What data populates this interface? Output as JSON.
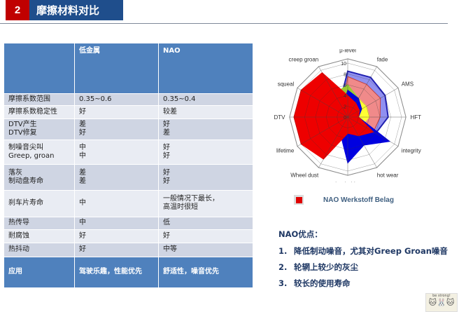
{
  "header": {
    "number": "2",
    "title": "摩擦材料对比"
  },
  "table": {
    "columns": [
      "",
      "低金属",
      "NAO"
    ],
    "rows": [
      [
        "摩擦系数范围",
        "0.35~0.6",
        "0.35~0.4"
      ],
      [
        "摩擦系数稳定性",
        "好",
        "较差"
      ],
      [
        "DTV产生\nDTV修复",
        "差\n好",
        "好\n差"
      ],
      [
        "制噪音尖叫\nGreep, groan",
        "中\n中",
        "好\n好"
      ],
      [
        "落灰\n制动盘寿命",
        "差\n差",
        "好\n好"
      ],
      [
        "刹车片寿命",
        "中",
        "一般情况下最长，\n高温时很短"
      ],
      [
        "热传导",
        "中",
        "低"
      ],
      [
        "耐腐蚀",
        "好",
        "好"
      ],
      [
        "热抖动",
        "好",
        "中等"
      ]
    ],
    "footer": [
      "应用",
      "驾驶乐趣，性能优先",
      "舒适性，噪音优先"
    ]
  },
  "chart_data": {
    "type": "radar",
    "axes": [
      "μ-level",
      "fade",
      "AMS",
      "HFT",
      "integrity",
      "hot wear",
      "hot judder",
      "Wheel dust",
      "lifetime",
      "DTV",
      "squeal",
      "creep groan"
    ],
    "rlim": [
      0,
      10
    ],
    "ticks": [
      "0",
      "2",
      "4",
      "6",
      "8",
      "10"
    ],
    "series": [
      {
        "color": "#9090f0",
        "stroke": "#2020b0",
        "values": [
          8.5,
          8.5,
          8,
          7.5,
          6,
          3,
          2,
          2,
          2,
          2,
          2,
          3
        ]
      },
      {
        "color": "#f08a8a",
        "stroke": "#c04040",
        "values": [
          7.5,
          7,
          7,
          6,
          5.5,
          2,
          2,
          2,
          2,
          2,
          2,
          2
        ]
      },
      {
        "color": "#99cc33",
        "stroke": "#99cc33",
        "values": [
          6,
          4,
          3,
          2,
          2,
          2,
          2,
          2,
          2,
          2,
          2,
          5
        ]
      },
      {
        "color": "#ffff33",
        "stroke": "#ffff33",
        "values": [
          4,
          4,
          4,
          4,
          3,
          2,
          2,
          2,
          2,
          2,
          2,
          2
        ]
      },
      {
        "color": "#0000e0",
        "stroke": "#0000e0",
        "values": [
          5,
          4,
          3,
          2,
          9,
          6,
          8.5,
          3,
          2,
          2,
          2,
          2
        ]
      },
      {
        "name": "NAO Werkstoff Belag",
        "color": "#ee0000",
        "stroke": "#ee0000",
        "values": [
          4,
          3,
          2.5,
          2,
          5.5,
          4,
          3,
          9,
          10,
          10,
          10,
          9.5
        ]
      }
    ],
    "legend": "bottom"
  },
  "advantages": {
    "title": "NAO优点：",
    "items": [
      {
        "n": "1.",
        "text": "降低制动噪音，尤其对Greep Groan噪音"
      },
      {
        "n": "2.",
        "text": "轮辋上较少的灰尘"
      },
      {
        "n": "3.",
        "text": "较长的使用寿命"
      }
    ]
  },
  "sticker": {
    "text": "be strong!"
  }
}
